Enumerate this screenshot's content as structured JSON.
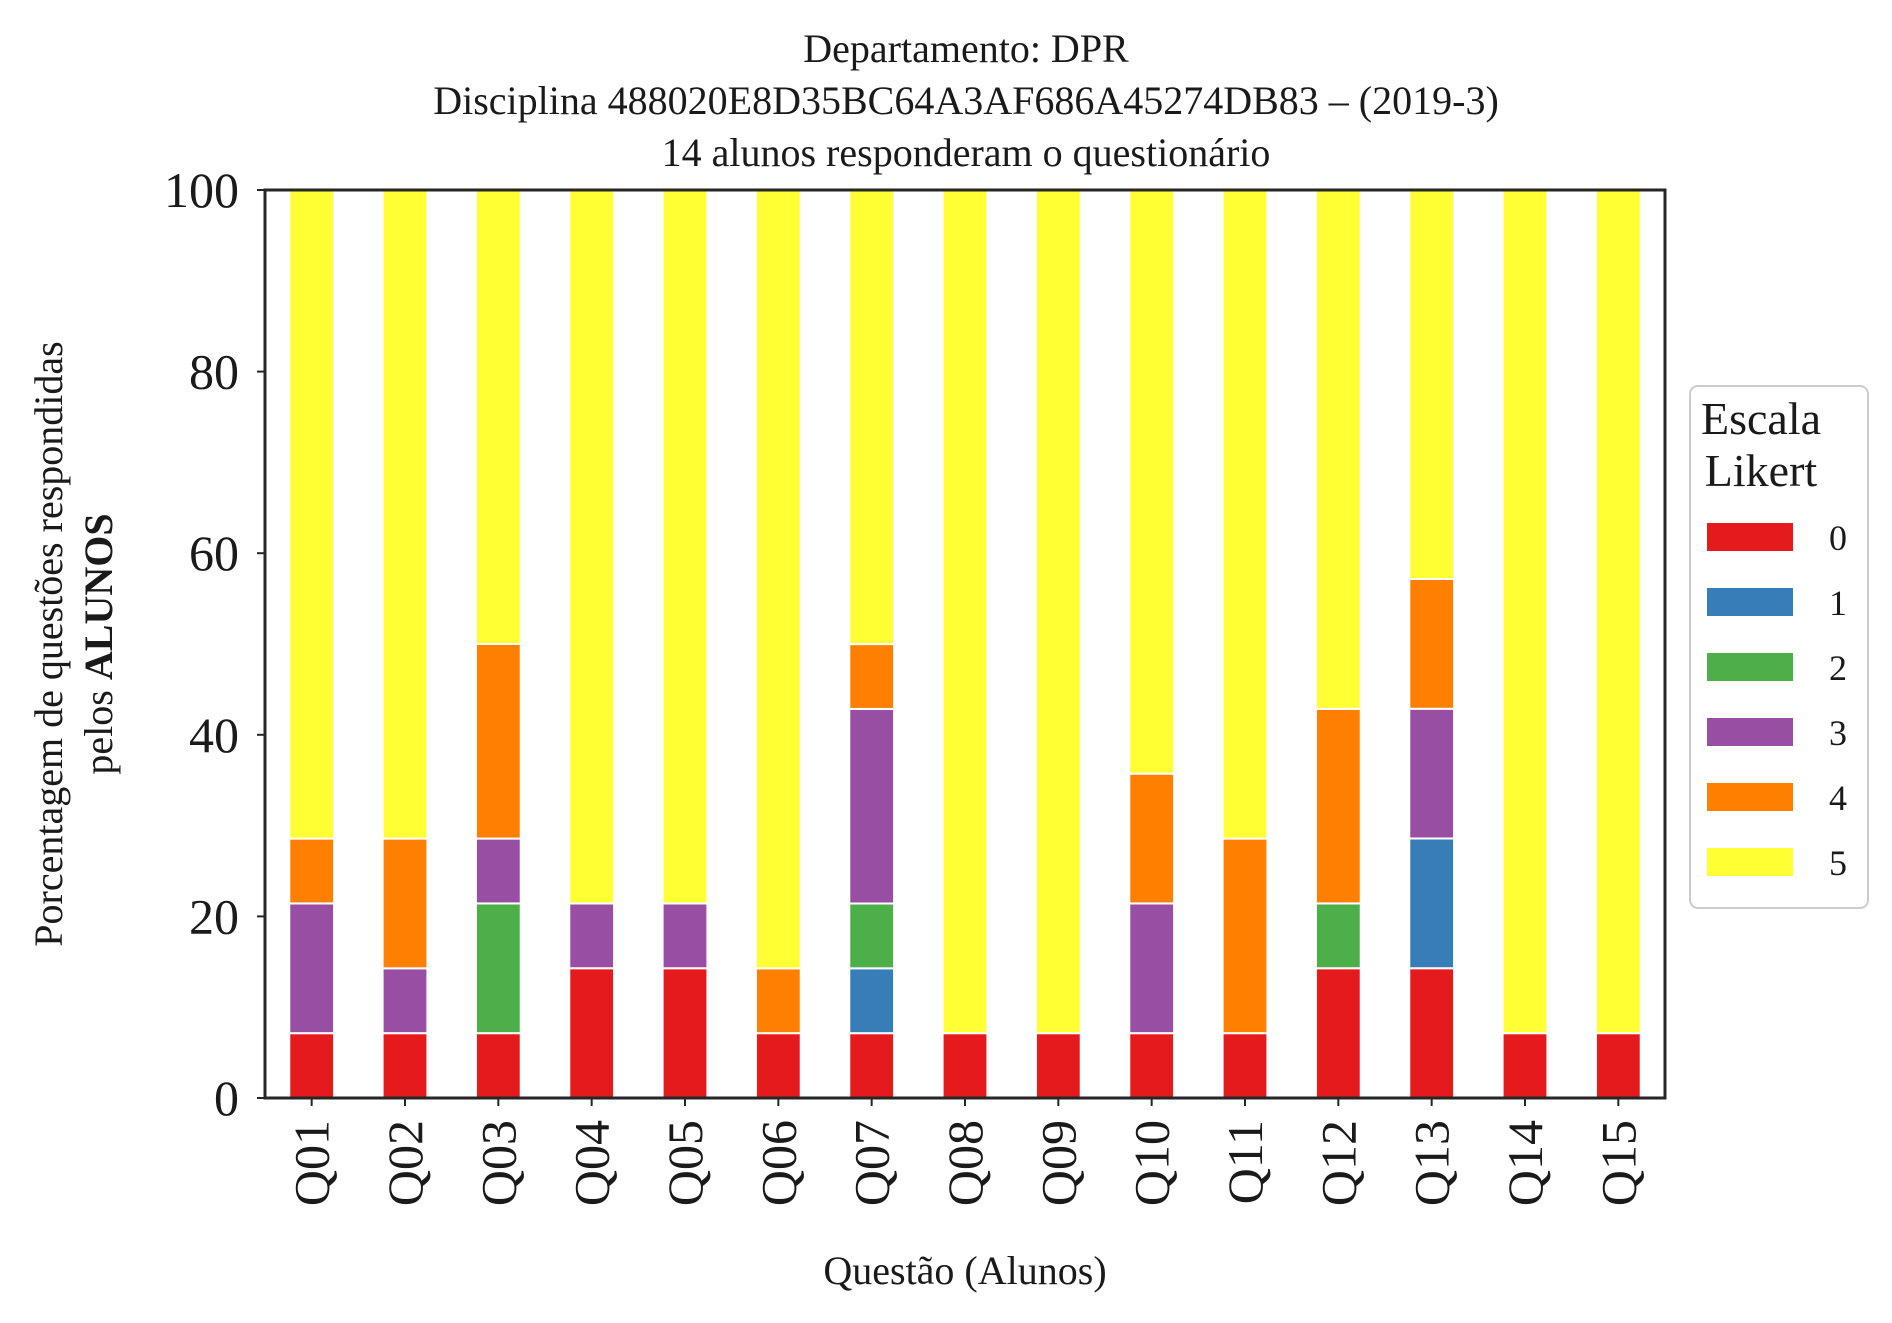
{
  "chart_data": {
    "type": "bar",
    "stacked": true,
    "title_lines": [
      "Departamento: DPR",
      "Disciplina 488020E8D35BC64A3AF686A45274DB83 – (2019-3)",
      "14 alunos responderam o questionário"
    ],
    "xlabel": "Questão (Alunos)",
    "ylabel_line1": "Porcentagem de questões respondidas",
    "ylabel_line2_prefix": "pelos ",
    "ylabel_line2_bold": "ALUNOS",
    "ylim": [
      0,
      100
    ],
    "yticks": [
      "0",
      "20",
      "40",
      "60",
      "80",
      "100"
    ],
    "grid": false,
    "legend_position": "right",
    "legend_title_lines": [
      "Escala",
      "Likert"
    ],
    "categories": [
      "Q01",
      "Q02",
      "Q03",
      "Q04",
      "Q05",
      "Q06",
      "Q07",
      "Q08",
      "Q09",
      "Q10",
      "Q11",
      "Q12",
      "Q13",
      "Q14",
      "Q15"
    ],
    "series": [
      {
        "name": "0",
        "color": "#e41a1c",
        "values": [
          7.14,
          7.14,
          7.14,
          14.29,
          14.29,
          7.14,
          7.14,
          7.14,
          7.14,
          7.14,
          7.14,
          14.29,
          14.29,
          7.14,
          7.14
        ]
      },
      {
        "name": "1",
        "color": "#377eb8",
        "values": [
          0,
          0,
          0,
          0,
          0,
          0,
          7.14,
          0,
          0,
          0,
          0,
          0,
          14.29,
          0,
          0
        ]
      },
      {
        "name": "2",
        "color": "#4daf4a",
        "values": [
          0,
          0,
          14.29,
          0,
          0,
          0,
          7.14,
          0,
          0,
          0,
          0,
          7.14,
          0,
          0,
          0
        ]
      },
      {
        "name": "3",
        "color": "#984ea3",
        "values": [
          14.29,
          7.14,
          7.14,
          7.14,
          7.14,
          0,
          21.43,
          0,
          0,
          14.29,
          0,
          0,
          14.29,
          0,
          0
        ]
      },
      {
        "name": "4",
        "color": "#ff7f00",
        "values": [
          7.14,
          14.29,
          21.43,
          0,
          0,
          7.14,
          7.14,
          0,
          0,
          14.29,
          21.43,
          21.43,
          14.29,
          0,
          0
        ]
      },
      {
        "name": "5",
        "color": "#ffff33",
        "values": [
          71.43,
          71.43,
          50.0,
          78.57,
          78.57,
          85.71,
          50.0,
          92.86,
          92.86,
          64.29,
          71.43,
          57.14,
          42.86,
          92.86,
          92.86
        ]
      }
    ]
  }
}
